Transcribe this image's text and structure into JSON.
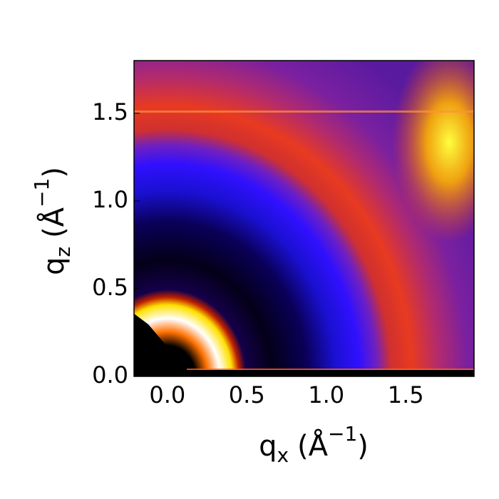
{
  "chart_data": {
    "type": "heatmap",
    "xlabel": [
      "q",
      "x",
      "(Å",
      "−1",
      ")"
    ],
    "ylabel": [
      "q",
      "z",
      "(Å",
      "−1",
      ")"
    ],
    "xlim": [
      -0.21,
      1.93
    ],
    "ylim": [
      0,
      1.8
    ],
    "xticks": [
      {
        "value": 0,
        "label": "0.0"
      },
      {
        "value": 0.5,
        "label": "0.5"
      },
      {
        "value": 1,
        "label": "1.0"
      },
      {
        "value": 1.5,
        "label": "1.5"
      }
    ],
    "yticks": [
      {
        "value": 0,
        "label": "0.0"
      },
      {
        "value": 0.5,
        "label": "0.5"
      },
      {
        "value": 1,
        "label": "1.0"
      },
      {
        "value": 1.5,
        "label": "1.5"
      }
    ]
  }
}
